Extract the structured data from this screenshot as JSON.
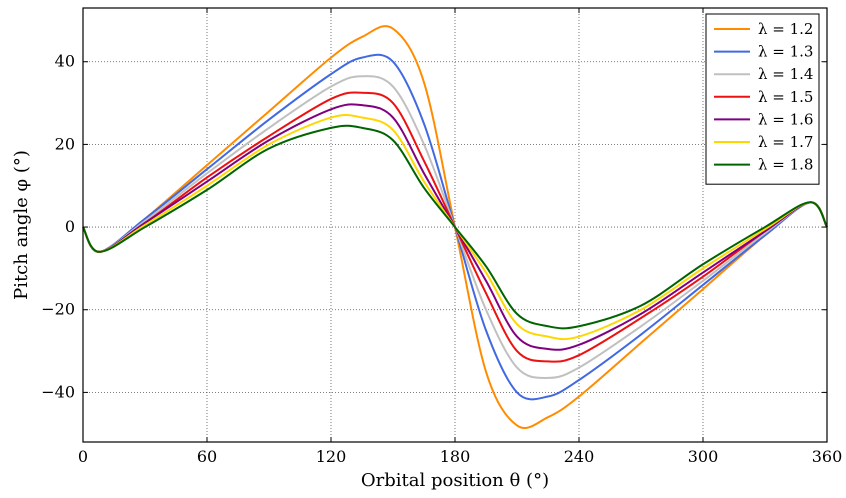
{
  "chart_data": {
    "type": "line",
    "xlabel": "Orbital position θ (°)",
    "ylabel": "Pitch angle φ (°)",
    "xlim": [
      0,
      360
    ],
    "ylim": [
      -52,
      53
    ],
    "x_ticks": [
      0,
      60,
      120,
      180,
      240,
      300,
      360
    ],
    "y_ticks": [
      -40,
      -20,
      0,
      20,
      40
    ],
    "x_tick_labels": [
      "0",
      "60",
      "120",
      "180",
      "240",
      "300",
      "360"
    ],
    "y_tick_labels": [
      "−40",
      "−20",
      "0",
      "20",
      "40"
    ],
    "grid": true,
    "grid_style": "dotted",
    "legend_position": "top-right",
    "x": [
      0,
      8,
      30,
      60,
      90,
      120,
      135,
      150,
      165,
      180,
      195,
      210,
      225,
      240,
      270,
      300,
      330,
      352,
      360
    ],
    "series": [
      {
        "name": "λ = 1.2",
        "color": "#ff8c00",
        "values": [
          0,
          -6,
          2,
          15,
          28,
          41,
          46,
          48,
          35,
          0,
          -35,
          -48,
          -46,
          -41,
          -28,
          -15,
          -2,
          6,
          0
        ]
      },
      {
        "name": "λ = 1.3",
        "color": "#4169e1",
        "values": [
          0,
          -6,
          2,
          14,
          26,
          37,
          41,
          40,
          25,
          0,
          -25,
          -40,
          -41,
          -37,
          -26,
          -14,
          -2,
          6,
          0
        ]
      },
      {
        "name": "λ = 1.4",
        "color": "#c0c0c0",
        "values": [
          0,
          -6,
          1.5,
          13,
          24,
          34,
          36.5,
          34,
          20,
          0,
          -20,
          -34,
          -36.5,
          -34,
          -24,
          -13,
          -1.5,
          6,
          0
        ]
      },
      {
        "name": "λ = 1.5",
        "color": "#ee1111",
        "values": [
          0,
          -6,
          1,
          12,
          22,
          31,
          32.5,
          30,
          16,
          0,
          -16,
          -30,
          -32.5,
          -31,
          -22,
          -12,
          -1,
          6,
          0
        ]
      },
      {
        "name": "λ = 1.6",
        "color": "#800080",
        "values": [
          0,
          -6,
          1,
          11,
          21,
          28.5,
          29.5,
          26.5,
          13,
          0,
          -13,
          -26.5,
          -29.5,
          -28.5,
          -21,
          -11,
          -1,
          6,
          0
        ]
      },
      {
        "name": "λ = 1.7",
        "color": "#ffd700",
        "values": [
          0,
          -6,
          0.5,
          10,
          20,
          26.5,
          26.5,
          23.5,
          11,
          0,
          -11,
          -23.5,
          -26.5,
          -26.5,
          -20,
          -10,
          -0.5,
          6,
          0
        ]
      },
      {
        "name": "λ = 1.8",
        "color": "#006400",
        "values": [
          0,
          -6,
          0,
          9,
          19,
          24,
          24,
          21,
          9.5,
          0,
          -9.5,
          -21,
          -24,
          -24,
          -19,
          -9,
          0,
          6,
          0
        ]
      }
    ]
  }
}
